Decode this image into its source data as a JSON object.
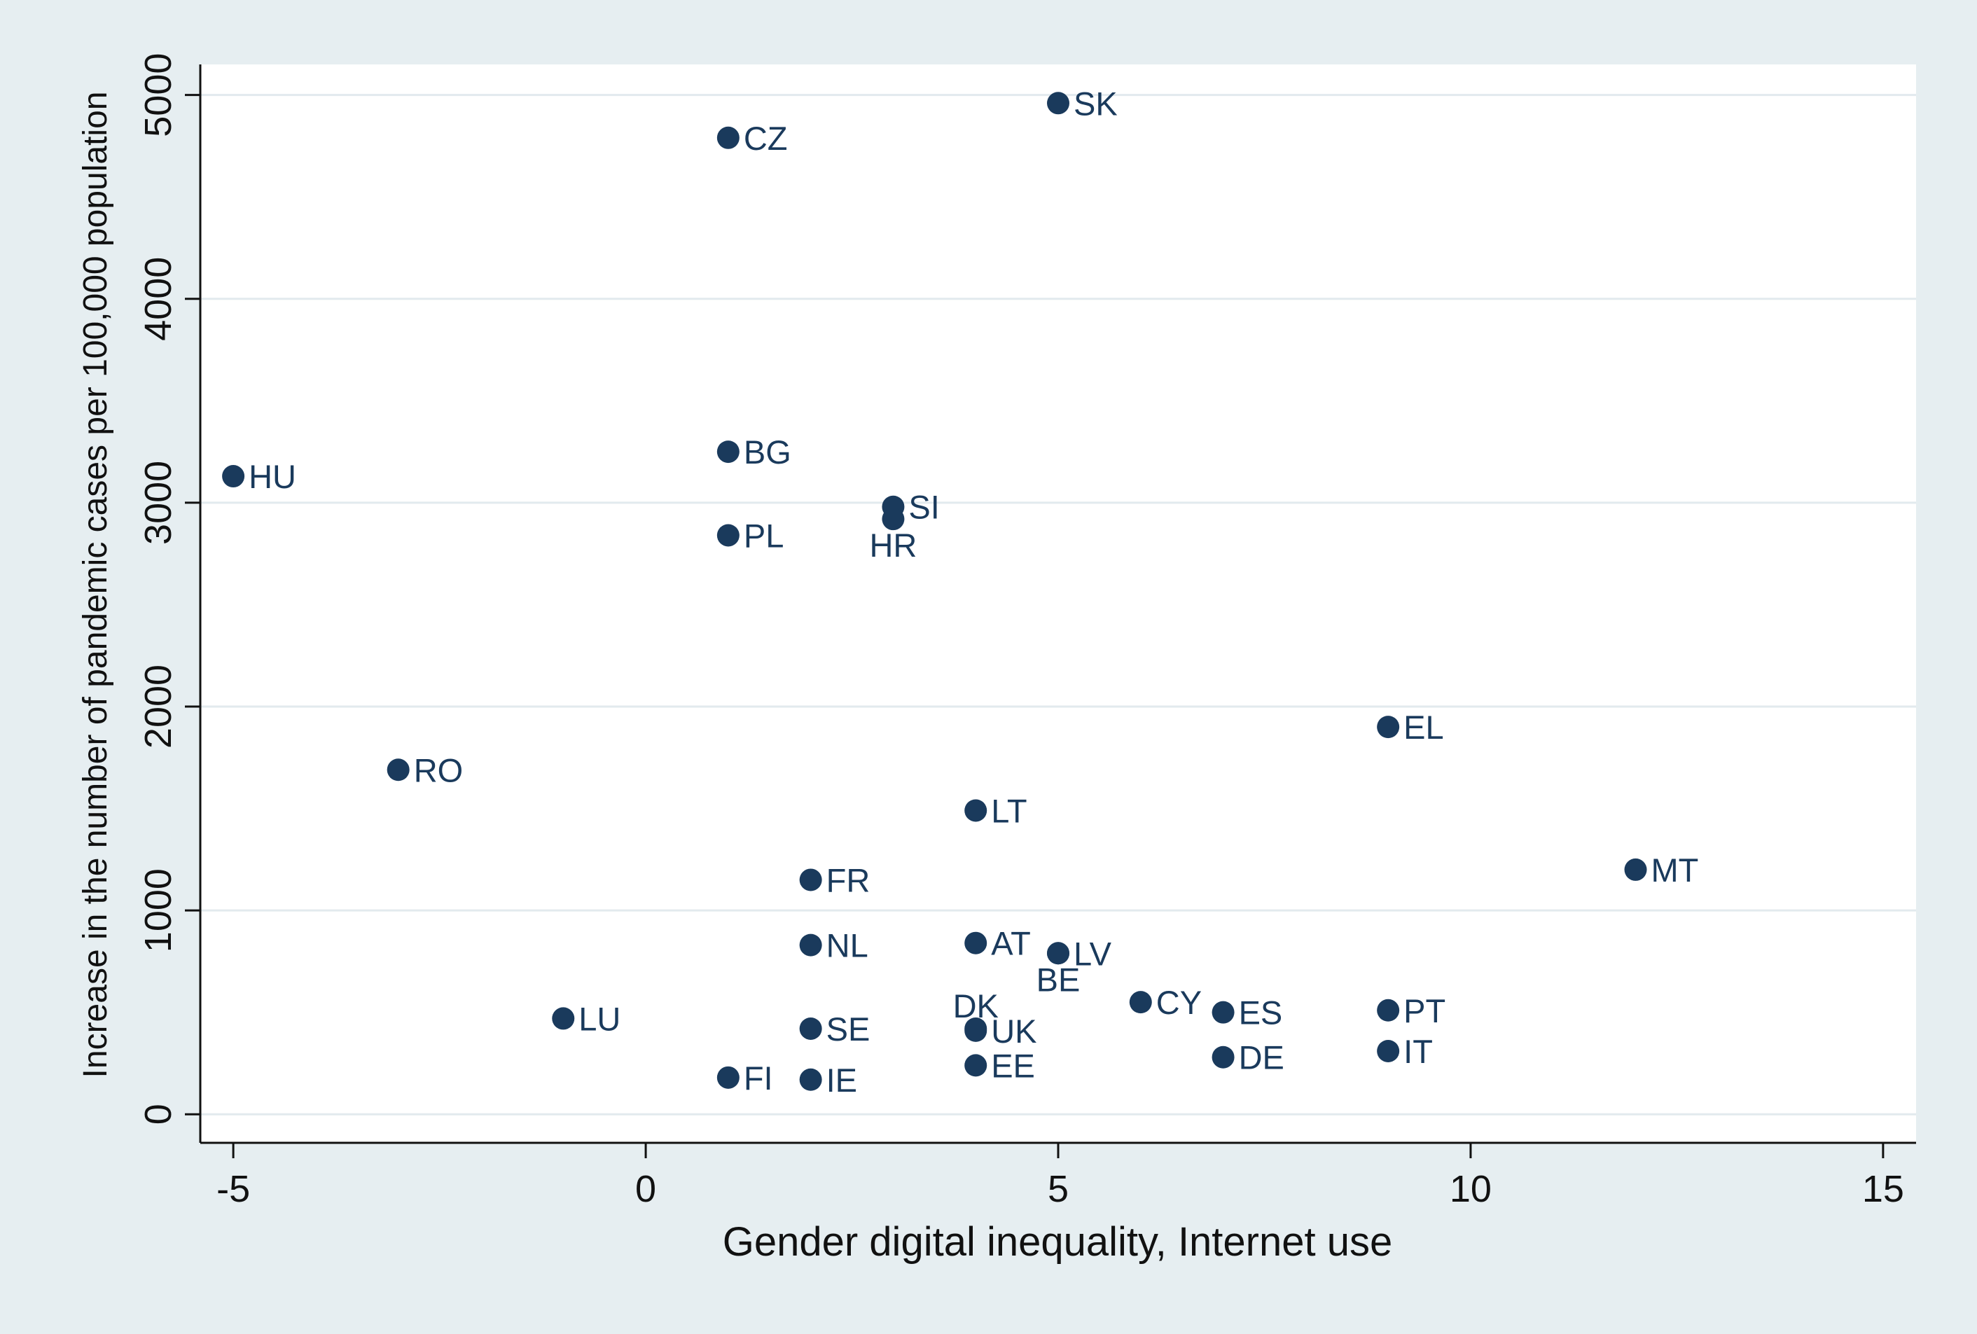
{
  "chart_data": {
    "type": "scatter",
    "title": "",
    "xlabel": "Gender digital inequality, Internet use",
    "ylabel": "Increase in the number of pandemic cases per 100,000 population",
    "xlim": [
      -5.4,
      15.4
    ],
    "ylim": [
      -140,
      5150
    ],
    "xticks": [
      -5,
      0,
      5,
      10,
      15
    ],
    "yticks": [
      0,
      1000,
      2000,
      3000,
      4000,
      5000
    ],
    "xtick_labels": [
      "-5",
      "0",
      "5",
      "10",
      "15"
    ],
    "ytick_labels": [
      "0",
      "1000",
      "2000",
      "3000",
      "4000",
      "5000"
    ],
    "grid": true,
    "colors": {
      "outer_background": "#e6eef1",
      "plot_background": "#ffffff",
      "grid": "#e2eaee",
      "marker": "#1a3a5c",
      "label": "#1a3a5c",
      "axis": "#111111"
    },
    "points": [
      {
        "label": "SK",
        "x": 5,
        "y": 4960,
        "pos": "right"
      },
      {
        "label": "CZ",
        "x": 1,
        "y": 4790,
        "pos": "right"
      },
      {
        "label": "BG",
        "x": 1,
        "y": 3250,
        "pos": "right"
      },
      {
        "label": "HU",
        "x": -5,
        "y": 3130,
        "pos": "right"
      },
      {
        "label": "SI",
        "x": 3,
        "y": 2980,
        "pos": "right"
      },
      {
        "label": "HR",
        "x": 3,
        "y": 2920,
        "pos": "below"
      },
      {
        "label": "PL",
        "x": 1,
        "y": 2840,
        "pos": "right"
      },
      {
        "label": "EL",
        "x": 9,
        "y": 1900,
        "pos": "right"
      },
      {
        "label": "RO",
        "x": -3,
        "y": 1690,
        "pos": "right"
      },
      {
        "label": "LT",
        "x": 4,
        "y": 1490,
        "pos": "right"
      },
      {
        "label": "MT",
        "x": 12,
        "y": 1200,
        "pos": "right"
      },
      {
        "label": "FR",
        "x": 2,
        "y": 1150,
        "pos": "right"
      },
      {
        "label": "AT",
        "x": 4,
        "y": 840,
        "pos": "right"
      },
      {
        "label": "NL",
        "x": 2,
        "y": 830,
        "pos": "right"
      },
      {
        "label": "LV",
        "x": 5,
        "y": 790,
        "pos": "right"
      },
      {
        "label": "BE",
        "x": 5,
        "y": 790,
        "pos": "below"
      },
      {
        "label": "CY",
        "x": 6,
        "y": 550,
        "pos": "right"
      },
      {
        "label": "PT",
        "x": 9,
        "y": 510,
        "pos": "right"
      },
      {
        "label": "ES",
        "x": 7,
        "y": 500,
        "pos": "right"
      },
      {
        "label": "LU",
        "x": -1,
        "y": 470,
        "pos": "right"
      },
      {
        "label": "DK",
        "x": 4,
        "y": 420,
        "pos": "above"
      },
      {
        "label": "SE",
        "x": 2,
        "y": 420,
        "pos": "right"
      },
      {
        "label": "UK",
        "x": 4,
        "y": 410,
        "pos": "right"
      },
      {
        "label": "IT",
        "x": 9,
        "y": 310,
        "pos": "right"
      },
      {
        "label": "DE",
        "x": 7,
        "y": 280,
        "pos": "right"
      },
      {
        "label": "EE",
        "x": 4,
        "y": 240,
        "pos": "right"
      },
      {
        "label": "FI",
        "x": 1,
        "y": 180,
        "pos": "right"
      },
      {
        "label": "IE",
        "x": 2,
        "y": 170,
        "pos": "right"
      }
    ]
  }
}
